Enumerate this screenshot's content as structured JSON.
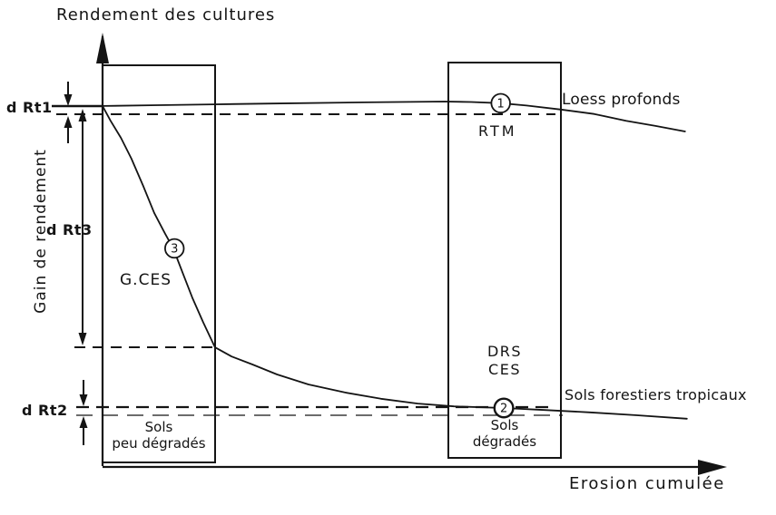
{
  "figure": {
    "title": "Rendement des cultures",
    "x_axis_label": "Erosion cumulée",
    "y_axis_label": "Gain de rendement"
  },
  "labels": {
    "d_rt1": "d Rt1",
    "d_rt3": "d Rt3",
    "d_rt2": "d Rt2",
    "rtm": "RTM",
    "g_ces": "G.CES",
    "drs": "DRS",
    "ces": "CES",
    "loess_profonds": "Loess profonds",
    "sols_forestiers": "Sols forestiers tropicaux",
    "sols_peu_degrades_line1": "Sols",
    "sols_peu_degrades_line2": "peu dégradés",
    "sols_degrades_line1": "Sols",
    "sols_degrades_line2": "dégradés"
  },
  "colors": {
    "ink": "#141414",
    "background": "#ffffff"
  },
  "chart_data": {
    "type": "line",
    "title": "Rendement des cultures",
    "xlabel": "Erosion cumulée",
    "ylabel": "Gain de rendement",
    "axes_qualitative": true,
    "x_range": [
      0,
      100
    ],
    "y_range": [
      0,
      100
    ],
    "grid": false,
    "legend_position": "inline-at-line-ends",
    "series": [
      {
        "name": "Loess profonds",
        "points": [
          [
            0,
            89.8
          ],
          [
            9,
            90.0
          ],
          [
            18,
            90.2
          ],
          [
            27.6,
            90.4
          ],
          [
            42.4,
            90.7
          ],
          [
            55.7,
            90.9
          ],
          [
            60,
            90.8
          ],
          [
            64.8,
            90.5
          ],
          [
            69,
            89.9
          ],
          [
            74.6,
            88.9
          ],
          [
            80,
            87.8
          ],
          [
            85.2,
            86.1
          ],
          [
            90,
            84.8
          ],
          [
            94.8,
            83.4
          ]
        ]
      },
      {
        "name": "Sols forestiers tropicaux",
        "points": [
          [
            0,
            89.8
          ],
          [
            1.3,
            86.1
          ],
          [
            3,
            81.8
          ],
          [
            4.7,
            76.6
          ],
          [
            6.6,
            69.8
          ],
          [
            8.4,
            63
          ],
          [
            10.2,
            57.7
          ],
          [
            11.5,
            54.1
          ],
          [
            13.1,
            47.7
          ],
          [
            14.6,
            41.8
          ],
          [
            16.4,
            35.5
          ],
          [
            18.3,
            29.3
          ],
          [
            21,
            27
          ],
          [
            24.4,
            25
          ],
          [
            28.4,
            22.5
          ],
          [
            33.5,
            20
          ],
          [
            39.4,
            18
          ],
          [
            45.3,
            16.4
          ],
          [
            51.3,
            15.2
          ],
          [
            57.2,
            14.5
          ],
          [
            65.3,
            14.1
          ],
          [
            71.9,
            13.6
          ],
          [
            79.3,
            13
          ],
          [
            86.7,
            12.3
          ],
          [
            95.1,
            11.4
          ]
        ]
      }
    ],
    "marked_points": [
      {
        "id": "1",
        "series": "Loess profonds",
        "x": 64.8,
        "y": 90.5,
        "label": "RTM"
      },
      {
        "id": "2",
        "series": "Sols forestiers tropicaux",
        "x": 65.3,
        "y": 14.1,
        "label": "DRS CES"
      },
      {
        "id": "3",
        "series": "Sols forestiers tropicaux",
        "x": 11.7,
        "y": 54.1,
        "label": "G.CES"
      }
    ],
    "reference_levels": {
      "d_Rt1_span": [
        87.7,
        89.8
      ],
      "d_Rt3_span": [
        29.3,
        87.7
      ],
      "d_Rt2_span": [
        12.3,
        14.3
      ]
    },
    "zones": [
      {
        "label": "Sols peu dégradés",
        "x_range": [
          0,
          18.3
        ]
      },
      {
        "label": "Sols dégradés",
        "x_range": [
          56.3,
          74.6
        ]
      }
    ]
  }
}
